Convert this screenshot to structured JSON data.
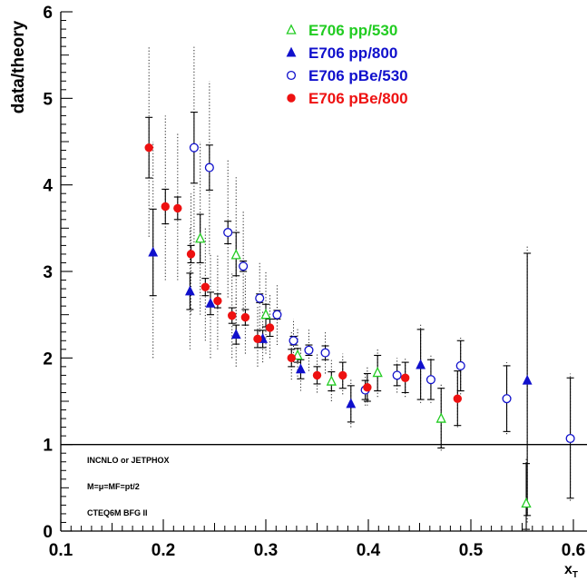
{
  "chart_data": {
    "type": "scatter",
    "ylabel": "data/theory",
    "xlabel": "x",
    "xlabel_sub": "T",
    "xlim": [
      0.1,
      0.6
    ],
    "ylim": [
      0,
      6
    ],
    "x_ticks": [
      "0.1",
      "0.2",
      "0.3",
      "0.4",
      "0.5",
      "0.6"
    ],
    "y_ticks": [
      "0",
      "1",
      "2",
      "3",
      "4",
      "5",
      "6"
    ],
    "reference_line": 1,
    "legend_position": "top-center",
    "annotations": [
      "INCNLO or JETPHOX",
      "M=μ=MF=pt/2",
      "CTEQ6M BFG II"
    ],
    "series": [
      {
        "name": "E706 pp/530",
        "marker": "open-triangle",
        "color": "#22cc22",
        "points": [
          {
            "x": 0.236,
            "y": 3.38,
            "stat": [
              3.1,
              3.66
            ],
            "sys": [
              2.5,
              4.5
            ]
          },
          {
            "x": 0.271,
            "y": 3.19,
            "stat": [
              2.95,
              3.45
            ],
            "sys": [
              2.4,
              4.1
            ]
          },
          {
            "x": 0.3,
            "y": 2.5,
            "stat": [
              2.36,
              2.62
            ],
            "sys": [
              2.05,
              3.0
            ]
          },
          {
            "x": 0.331,
            "y": 2.03,
            "stat": [
              1.95,
              2.11
            ],
            "sys": [
              1.75,
              2.35
            ]
          },
          {
            "x": 0.364,
            "y": 1.73,
            "stat": [
              1.62,
              1.84
            ],
            "sys": [
              1.5,
              1.99
            ]
          },
          {
            "x": 0.409,
            "y": 1.83,
            "stat": [
              1.62,
              2.03
            ],
            "sys": [
              1.55,
              2.1
            ]
          },
          {
            "x": 0.471,
            "y": 1.3,
            "stat": [
              0.96,
              1.65
            ],
            "sys": [
              0.93,
              1.7
            ]
          },
          {
            "x": 0.554,
            "y": 0.32,
            "stat": [
              0.02,
              0.78
            ],
            "sys": [
              0.0,
              0.85
            ]
          }
        ]
      },
      {
        "name": "E706 pp/800",
        "marker": "filled-triangle",
        "color": "#1010cc",
        "points": [
          {
            "x": 0.19,
            "y": 3.22,
            "stat": [
              2.72,
              3.72
            ],
            "sys": [
              2.0,
              4.5
            ]
          },
          {
            "x": 0.226,
            "y": 2.77,
            "stat": [
              2.56,
              2.98
            ],
            "sys": [
              2.1,
              3.5
            ]
          },
          {
            "x": 0.246,
            "y": 2.63,
            "stat": [
              2.5,
              2.76
            ],
            "sys": [
              2.0,
              3.2
            ]
          },
          {
            "x": 0.271,
            "y": 2.27,
            "stat": [
              2.16,
              2.38
            ],
            "sys": [
              1.9,
              2.7
            ]
          },
          {
            "x": 0.297,
            "y": 2.22,
            "stat": [
              2.12,
              2.32
            ],
            "sys": [
              1.95,
              2.55
            ]
          },
          {
            "x": 0.334,
            "y": 1.87,
            "stat": [
              1.76,
              1.98
            ],
            "sys": [
              1.62,
              2.1
            ]
          },
          {
            "x": 0.383,
            "y": 1.47,
            "stat": [
              1.26,
              1.68
            ],
            "sys": [
              1.2,
              1.75
            ]
          },
          {
            "x": 0.451,
            "y": 1.92,
            "stat": [
              1.52,
              2.33
            ],
            "sys": [
              1.48,
              2.4
            ]
          },
          {
            "x": 0.555,
            "y": 1.74,
            "stat": [
              0.18,
              3.21
            ],
            "sys": [
              0.1,
              3.3
            ]
          }
        ]
      },
      {
        "name": "E706 pBe/530",
        "marker": "open-circle",
        "color": "#1010cc",
        "points": [
          {
            "x": 0.23,
            "y": 4.43,
            "stat": [
              4.02,
              4.84
            ],
            "sys": [
              3.3,
              5.6
            ]
          },
          {
            "x": 0.245,
            "y": 4.2,
            "stat": [
              3.94,
              4.46
            ],
            "sys": [
              3.2,
              5.2
            ]
          },
          {
            "x": 0.263,
            "y": 3.45,
            "stat": [
              3.32,
              3.58
            ],
            "sys": [
              2.7,
              4.3
            ]
          },
          {
            "x": 0.278,
            "y": 3.06,
            "stat": [
              3.0,
              3.12
            ],
            "sys": [
              2.5,
              3.7
            ]
          },
          {
            "x": 0.294,
            "y": 2.69,
            "stat": [
              2.64,
              2.74
            ],
            "sys": [
              2.3,
              3.1
            ]
          },
          {
            "x": 0.311,
            "y": 2.5,
            "stat": [
              2.45,
              2.55
            ],
            "sys": [
              2.15,
              2.85
            ]
          },
          {
            "x": 0.327,
            "y": 2.2,
            "stat": [
              2.15,
              2.25
            ],
            "sys": [
              1.95,
              2.45
            ]
          },
          {
            "x": 0.342,
            "y": 2.09,
            "stat": [
              2.03,
              2.15
            ],
            "sys": [
              1.85,
              2.33
            ]
          },
          {
            "x": 0.358,
            "y": 2.06,
            "stat": [
              1.98,
              2.14
            ],
            "sys": [
              1.82,
              2.3
            ]
          },
          {
            "x": 0.397,
            "y": 1.63,
            "stat": [
              1.52,
              1.74
            ],
            "sys": [
              1.45,
              1.82
            ]
          },
          {
            "x": 0.428,
            "y": 1.8,
            "stat": [
              1.68,
              1.92
            ],
            "sys": [
              1.6,
              2.0
            ]
          },
          {
            "x": 0.461,
            "y": 1.75,
            "stat": [
              1.52,
              1.98
            ],
            "sys": [
              1.48,
              2.03
            ]
          },
          {
            "x": 0.49,
            "y": 1.91,
            "stat": [
              1.62,
              2.2
            ],
            "sys": [
              1.58,
              2.25
            ]
          },
          {
            "x": 0.535,
            "y": 1.53,
            "stat": [
              1.15,
              1.91
            ],
            "sys": [
              1.12,
              1.95
            ]
          },
          {
            "x": 0.597,
            "y": 1.07,
            "stat": [
              0.38,
              1.77
            ],
            "sys": [
              0.35,
              1.82
            ]
          }
        ]
      },
      {
        "name": "E706 pBe/800",
        "marker": "filled-circle",
        "color": "#ee1111",
        "points": [
          {
            "x": 0.186,
            "y": 4.43,
            "stat": [
              4.08,
              4.78
            ],
            "sys": [
              3.4,
              5.6
            ]
          },
          {
            "x": 0.202,
            "y": 3.75,
            "stat": [
              3.55,
              3.95
            ],
            "sys": [
              2.9,
              4.8
            ]
          },
          {
            "x": 0.214,
            "y": 3.73,
            "stat": [
              3.6,
              3.86
            ],
            "sys": [
              2.9,
              4.6
            ]
          },
          {
            "x": 0.227,
            "y": 3.2,
            "stat": [
              3.1,
              3.3
            ],
            "sys": [
              2.5,
              3.9
            ]
          },
          {
            "x": 0.241,
            "y": 2.82,
            "stat": [
              2.72,
              2.92
            ],
            "sys": [
              2.2,
              3.5
            ]
          },
          {
            "x": 0.253,
            "y": 2.66,
            "stat": [
              2.58,
              2.74
            ],
            "sys": [
              2.1,
              3.2
            ]
          },
          {
            "x": 0.267,
            "y": 2.49,
            "stat": [
              2.4,
              2.58
            ],
            "sys": [
              2.0,
              3.0
            ]
          },
          {
            "x": 0.28,
            "y": 2.47,
            "stat": [
              2.38,
              2.56
            ],
            "sys": [
              2.05,
              2.95
            ]
          },
          {
            "x": 0.292,
            "y": 2.22,
            "stat": [
              2.12,
              2.32
            ],
            "sys": [
              1.9,
              2.6
            ]
          },
          {
            "x": 0.304,
            "y": 2.35,
            "stat": [
              2.25,
              2.45
            ],
            "sys": [
              2.0,
              2.75
            ]
          },
          {
            "x": 0.325,
            "y": 2.0,
            "stat": [
              1.9,
              2.1
            ],
            "sys": [
              1.75,
              2.3
            ]
          },
          {
            "x": 0.35,
            "y": 1.8,
            "stat": [
              1.7,
              1.9
            ],
            "sys": [
              1.6,
              2.05
            ]
          },
          {
            "x": 0.375,
            "y": 1.8,
            "stat": [
              1.65,
              1.95
            ],
            "sys": [
              1.58,
              2.05
            ]
          },
          {
            "x": 0.399,
            "y": 1.66,
            "stat": [
              1.5,
              1.82
            ],
            "sys": [
              1.45,
              1.9
            ]
          },
          {
            "x": 0.436,
            "y": 1.77,
            "stat": [
              1.6,
              1.95
            ],
            "sys": [
              1.55,
              2.0
            ]
          },
          {
            "x": 0.487,
            "y": 1.53,
            "stat": [
              1.22,
              1.85
            ],
            "sys": [
              1.2,
              1.9
            ]
          }
        ]
      }
    ]
  }
}
